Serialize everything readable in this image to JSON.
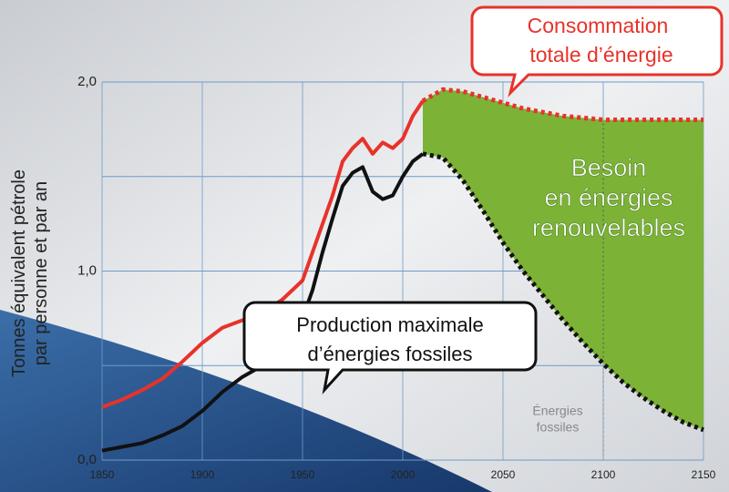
{
  "chart_data": {
    "type": "line",
    "y_axis_label": [
      "Tonnes équivalent pétrole",
      "par personne et par an"
    ],
    "xlim": [
      1850,
      2150
    ],
    "xticks": [
      1850,
      1900,
      1950,
      2000,
      2050,
      2100,
      2150
    ],
    "ylim": [
      0,
      2
    ],
    "yticks": [
      {
        "value": 0,
        "label": "0,0"
      },
      {
        "value": 1,
        "label": "1,0"
      },
      {
        "value": 2,
        "label": "2,0"
      }
    ],
    "minor_grid": [
      0.5,
      1.5
    ],
    "grid": true,
    "series": [
      {
        "name": "Consommation totale d’énergie",
        "color": "#e8322a",
        "style": "solid",
        "x": [
          1850,
          1860,
          1870,
          1880,
          1890,
          1900,
          1910,
          1920,
          1930,
          1940,
          1950,
          1955,
          1960,
          1965,
          1970,
          1975,
          1980,
          1985,
          1990,
          1995,
          2000,
          2005,
          2010
        ],
        "values": [
          0.28,
          0.32,
          0.37,
          0.43,
          0.52,
          0.62,
          0.7,
          0.74,
          0.78,
          0.85,
          0.95,
          1.1,
          1.25,
          1.4,
          1.58,
          1.65,
          1.7,
          1.62,
          1.68,
          1.65,
          1.7,
          1.82,
          1.9
        ]
      },
      {
        "name": "Production maximale d’énergies fossiles",
        "color": "#111111",
        "style": "solid",
        "x": [
          1850,
          1860,
          1870,
          1880,
          1890,
          1900,
          1910,
          1920,
          1930,
          1940,
          1950,
          1955,
          1960,
          1965,
          1970,
          1975,
          1980,
          1985,
          1990,
          1995,
          2000,
          2005,
          2010
        ],
        "values": [
          0.05,
          0.07,
          0.09,
          0.13,
          0.18,
          0.26,
          0.36,
          0.44,
          0.5,
          0.6,
          0.75,
          0.9,
          1.1,
          1.28,
          1.45,
          1.52,
          1.55,
          1.42,
          1.38,
          1.4,
          1.5,
          1.58,
          1.62
        ]
      },
      {
        "color": "#e8322a",
        "style": "dotted",
        "x": [
          2010,
          2020,
          2030,
          2040,
          2050,
          2060,
          2070,
          2080,
          2090,
          2100,
          2120,
          2150
        ],
        "values": [
          1.9,
          1.96,
          1.95,
          1.92,
          1.89,
          1.86,
          1.84,
          1.82,
          1.81,
          1.8,
          1.8,
          1.8
        ]
      },
      {
        "color": "#111111",
        "style": "dotted",
        "x": [
          2010,
          2020,
          2030,
          2040,
          2050,
          2060,
          2070,
          2080,
          2090,
          2100,
          2110,
          2120,
          2130,
          2140,
          2150
        ],
        "values": [
          1.62,
          1.6,
          1.48,
          1.32,
          1.15,
          1.0,
          0.87,
          0.74,
          0.62,
          0.51,
          0.41,
          0.33,
          0.26,
          0.2,
          0.16
        ]
      }
    ],
    "fill_color": "#7cb236",
    "annotations": {
      "consumption": [
        "Consommation",
        "totale d’énergie"
      ],
      "production": [
        "Production maximale",
        "d’énergies fossiles"
      ],
      "renewables": [
        "Besoin",
        "en énergies",
        "renouvelables"
      ],
      "fossil": [
        "Énergies",
        "fossiles"
      ]
    }
  }
}
